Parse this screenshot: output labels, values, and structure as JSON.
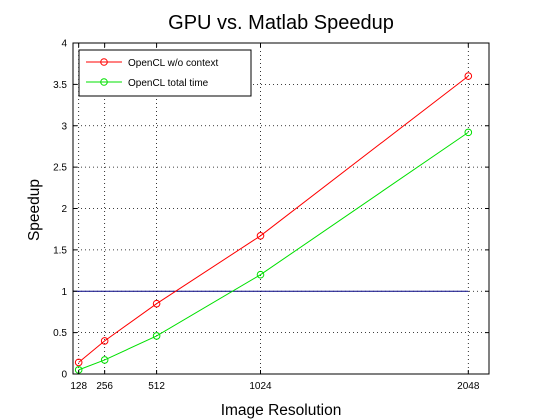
{
  "chart_data": {
    "type": "line",
    "title": "GPU vs. Matlab Speedup",
    "xlabel": "Image Resolution",
    "ylabel": "Speedup",
    "x": [
      128,
      256,
      512,
      1024,
      2048
    ],
    "xticks": [
      "128",
      "256",
      "512",
      "1024",
      "2048"
    ],
    "yticks": [
      "0",
      "0.5",
      "1",
      "1.5",
      "2",
      "2.5",
      "3",
      "3.5",
      "4"
    ],
    "xlim": [
      100,
      2150
    ],
    "ylim": [
      0,
      4
    ],
    "grid": true,
    "legend_position": "top-left",
    "series": [
      {
        "name": "OpenCL w/o context",
        "color": "#ff0000",
        "values": [
          0.14,
          0.4,
          0.85,
          1.67,
          3.6
        ]
      },
      {
        "name": "OpenCL total time",
        "color": "#00e000",
        "values": [
          0.05,
          0.17,
          0.46,
          1.2,
          2.92
        ]
      }
    ],
    "reference_line": {
      "y": 1,
      "x_range": [
        100,
        2048
      ],
      "color": "#000080"
    }
  }
}
